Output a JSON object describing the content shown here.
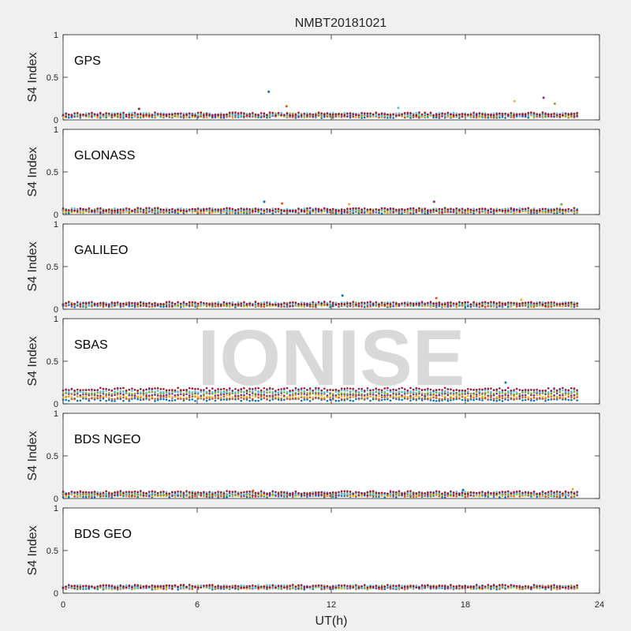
{
  "chart_data": {
    "type": "scatter",
    "title": "NMBT20181021",
    "xlabel": "UT(h)",
    "ylabel": "S4 Index",
    "xlim": [
      0,
      24
    ],
    "ylim": [
      0,
      1
    ],
    "x_ticks": [
      "0",
      "6",
      "12",
      "18",
      "24"
    ],
    "y_ticks": [
      "0",
      "0.5",
      "1"
    ],
    "watermark": "IONISE",
    "grid": false,
    "series_colors": [
      "#0072BD",
      "#D95319",
      "#EDB120",
      "#7E2F8E",
      "#77AC30",
      "#4DBEEE",
      "#A2142F"
    ],
    "panels": [
      {
        "label": "GPS",
        "baseline": [
          0.04,
          0.07
        ],
        "spikes": [
          [
            9.2,
            0.33
          ],
          [
            10.0,
            0.16
          ],
          [
            20.2,
            0.22
          ],
          [
            21.5,
            0.26
          ],
          [
            22.0,
            0.19
          ],
          [
            15.0,
            0.14
          ],
          [
            3.4,
            0.13
          ]
        ]
      },
      {
        "label": "GLONASS",
        "baseline": [
          0.03,
          0.06
        ],
        "spikes": [
          [
            9.0,
            0.15
          ],
          [
            9.8,
            0.13
          ],
          [
            12.8,
            0.12
          ],
          [
            16.6,
            0.15
          ],
          [
            22.3,
            0.12
          ]
        ]
      },
      {
        "label": "GALILEO",
        "baseline": [
          0.04,
          0.07
        ],
        "spikes": [
          [
            12.5,
            0.16
          ],
          [
            16.7,
            0.13
          ],
          [
            20.5,
            0.11
          ]
        ]
      },
      {
        "label": "SBAS",
        "baseline": [
          0.05,
          0.17
        ],
        "spikes": [
          [
            19.8,
            0.25
          ],
          [
            14.4,
            0.23
          ]
        ]
      },
      {
        "label": "BDS NGEO",
        "baseline": [
          0.03,
          0.07
        ],
        "spikes": [
          [
            17.9,
            0.1
          ],
          [
            8.5,
            0.09
          ],
          [
            22.8,
            0.11
          ]
        ]
      },
      {
        "label": "BDS GEO",
        "baseline": [
          0.06,
          0.08
        ],
        "spikes": []
      }
    ]
  }
}
